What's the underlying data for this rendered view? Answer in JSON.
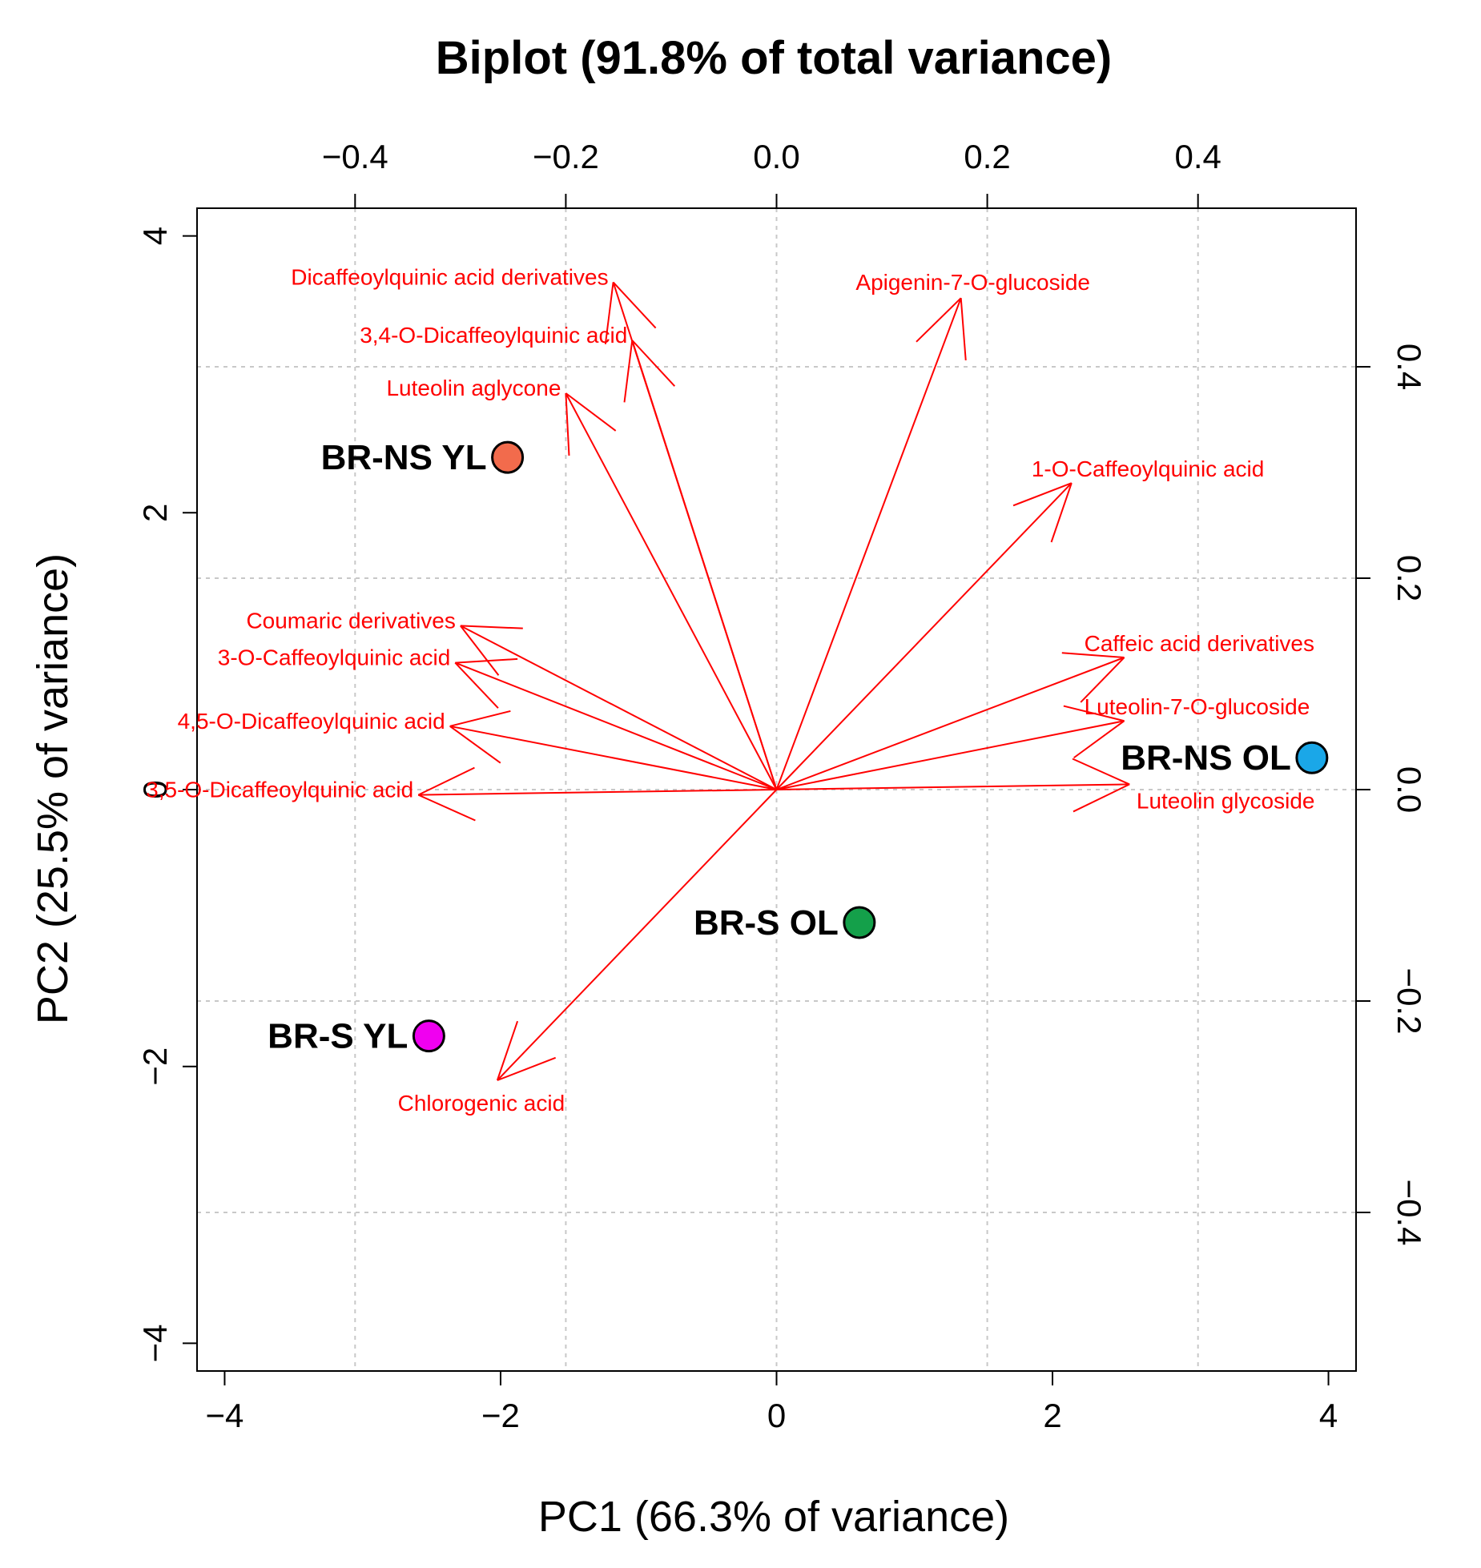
{
  "chart_data": {
    "type": "scatter",
    "title": "Biplot (91.8% of total variance)",
    "xlabel": "PC1 (66.3% of variance)",
    "ylabel": "PC2 (25.5% of variance)",
    "xlim": [
      -4.2,
      4.2
    ],
    "ylim": [
      -4.2,
      4.2
    ],
    "xlim_top": [
      -0.55,
      0.55
    ],
    "ylim_right": [
      -0.55,
      0.55
    ],
    "x_ticks": [
      -4,
      -2,
      0,
      2,
      4
    ],
    "x_tick_labels": [
      "−4",
      "−2",
      "0",
      "2",
      "4"
    ],
    "y_ticks": [
      -4,
      -2,
      0,
      2,
      4
    ],
    "y_tick_labels": [
      "−4",
      "−2",
      "0",
      "2",
      "4"
    ],
    "top_ticks": [
      -0.4,
      -0.2,
      0.0,
      0.2,
      0.4
    ],
    "top_tick_labels": [
      "−0.4",
      "−0.2",
      "0.0",
      "0.2",
      "0.4"
    ],
    "right_ticks": [
      -0.4,
      -0.2,
      0.0,
      0.2,
      0.4
    ],
    "right_tick_labels": [
      "−0.4",
      "−0.2",
      "0.0",
      "0.2",
      "0.4"
    ],
    "grid": true,
    "observations": [
      {
        "name": "BR-NS YL",
        "x": -1.95,
        "y": 2.4,
        "color": "#f26b4c"
      },
      {
        "name": "BR-NS OL",
        "x": 3.88,
        "y": 0.23,
        "color": "#1aa7e8"
      },
      {
        "name": "BR-S OL",
        "x": 0.6,
        "y": -0.96,
        "color": "#14a04a"
      },
      {
        "name": "BR-S YL",
        "x": -2.52,
        "y": -1.78,
        "color": "#f000f0"
      }
    ],
    "loadings": [
      {
        "name": "Dicaffeoylquinic acid derivatives",
        "x": -0.155,
        "y": 0.48,
        "label_pos": "left"
      },
      {
        "name": "3,4-O-Dicaffeoylquinic acid",
        "x": -0.137,
        "y": 0.425,
        "label_pos": "left"
      },
      {
        "name": "Luteolin aglycone",
        "x": -0.2,
        "y": 0.375,
        "label_pos": "left"
      },
      {
        "name": "Apigenin-7-O-glucoside",
        "x": 0.175,
        "y": 0.465,
        "label_pos": "top"
      },
      {
        "name": "1-O-Caffeoylquinic acid",
        "x": 0.28,
        "y": 0.29,
        "label_pos": "right"
      },
      {
        "name": "Coumaric derivatives",
        "x": -0.3,
        "y": 0.155,
        "label_pos": "left"
      },
      {
        "name": "3-O-Caffeoylquinic acid",
        "x": -0.305,
        "y": 0.12,
        "label_pos": "left"
      },
      {
        "name": "4,5-O-Dicaffeoylquinic acid",
        "x": -0.31,
        "y": 0.06,
        "label_pos": "left"
      },
      {
        "name": "3,5-O-Dicaffeoylquinic acid",
        "x": -0.34,
        "y": -0.005,
        "label_pos": "left"
      },
      {
        "name": "Caffeic acid derivatives",
        "x": 0.33,
        "y": 0.125,
        "label_pos": "right"
      },
      {
        "name": "Luteolin-7-O-glucoside",
        "x": 0.33,
        "y": 0.065,
        "label_pos": "right"
      },
      {
        "name": "Luteolin glycoside",
        "x": 0.335,
        "y": 0.005,
        "label_pos": "below"
      },
      {
        "name": "Chlorogenic acid",
        "x": -0.265,
        "y": -0.275,
        "label_pos": "below"
      }
    ],
    "colors": {
      "arrow": "#ff0000",
      "variable_label": "#ff0000",
      "grid": "#c8c8c8",
      "axis": "#000000"
    }
  }
}
